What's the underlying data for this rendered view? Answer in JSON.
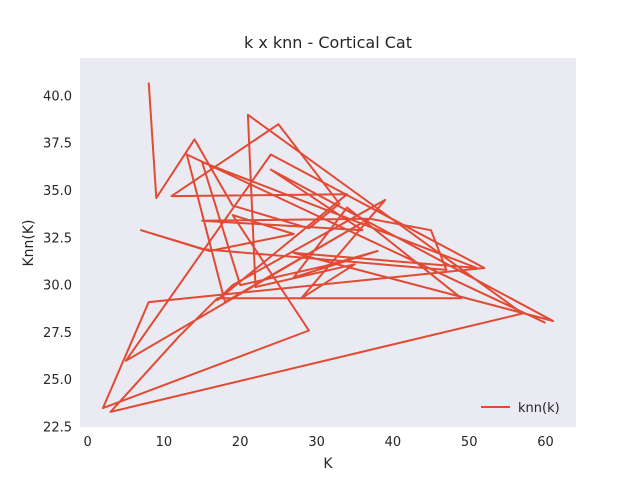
{
  "chart_data": {
    "type": "line",
    "title": "k x knn - Cortical Cat",
    "xlabel": "K",
    "ylabel": "Knn(K)",
    "xlim": [
      -1,
      64
    ],
    "ylim": [
      22.5,
      42
    ],
    "xticks": [
      0,
      10,
      20,
      30,
      40,
      50,
      60
    ],
    "yticks": [
      22.5,
      25.0,
      27.5,
      30.0,
      32.5,
      35.0,
      37.5,
      40.0
    ],
    "grid": false,
    "background": "#EAEAF2",
    "legend_position": "lower-right",
    "series": [
      {
        "name": "knn(k)",
        "color": "#E24A33",
        "x": [
          8,
          9,
          14,
          19,
          29,
          33,
          25,
          11,
          34,
          17,
          19,
          39,
          28,
          35,
          22,
          21,
          57,
          3,
          12,
          17,
          49,
          34,
          27,
          38,
          31,
          20,
          15,
          51,
          27,
          61,
          24,
          36,
          15,
          37,
          45,
          47,
          15,
          7,
          16,
          27,
          19,
          29,
          2,
          8,
          52,
          24,
          5,
          36,
          18,
          13,
          60
        ],
        "y": [
          40.7,
          34.6,
          37.7,
          34.2,
          33.0,
          34.3,
          38.5,
          34.7,
          34.8,
          29.2,
          30.0,
          34.5,
          29.3,
          31.1,
          29.9,
          39.0,
          28.5,
          23.3,
          27.3,
          29.3,
          29.3,
          34.1,
          30.4,
          31.8,
          31.0,
          30.0,
          36.5,
          30.9,
          31.7,
          28.1,
          36.1,
          32.9,
          33.4,
          33.5,
          32.9,
          30.8,
          31.9,
          32.9,
          31.8,
          32.7,
          33.7,
          27.6,
          23.5,
          29.1,
          30.9,
          36.9,
          26.0,
          33.3,
          29.1,
          36.9,
          28.0
        ]
      }
    ]
  }
}
